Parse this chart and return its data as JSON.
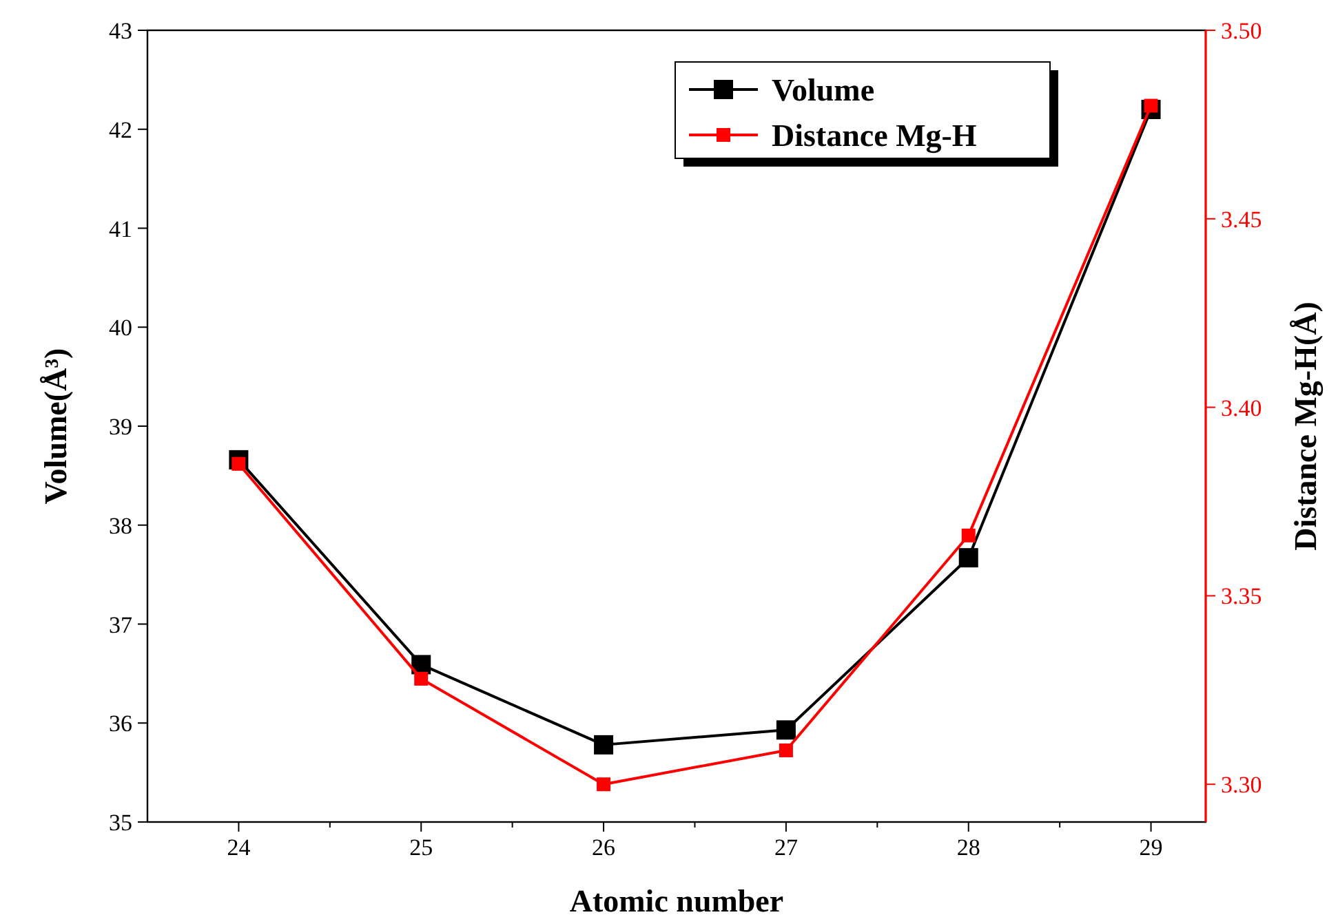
{
  "chart_data": {
    "type": "line",
    "xlabel": "Atomic number",
    "ylabel": "Volume(Å³)",
    "y2label": "Distance Mg-H(Å)",
    "x": [
      24,
      25,
      26,
      27,
      28,
      29
    ],
    "xlim": [
      23.5,
      29.3
    ],
    "xticks": [
      24,
      {
        "value": 24.5,
        "label": null
      },
      25,
      {
        "value": 25.5,
        "label": null
      },
      26,
      {
        "value": 26.5,
        "label": null
      },
      27,
      {
        "value": 27.5,
        "label": null
      },
      28,
      {
        "value": 28.5,
        "label": null
      },
      29
    ],
    "ylim": [
      35,
      43
    ],
    "yticks": [
      35,
      36,
      37,
      38,
      39,
      40,
      41,
      42,
      43
    ],
    "y2lim": [
      3.29,
      3.5
    ],
    "y2ticks": [
      {
        "value": 3.3,
        "label": "3.30"
      },
      3.35,
      {
        "value": 3.4,
        "label": "3.40"
      },
      3.45,
      {
        "value": 3.5,
        "label": "3.50"
      }
    ],
    "series": [
      {
        "name": "Volume",
        "color": "#000000",
        "values": [
          38.66,
          36.59,
          35.78,
          35.93,
          37.67,
          42.2
        ]
      },
      {
        "name": "Distance Mg-H",
        "color": "#ff0000",
        "axis": "y2",
        "values": [
          3.385,
          3.328,
          3.3,
          3.309,
          3.366,
          3.48
        ]
      }
    ],
    "marker": "square",
    "line_style": "solid",
    "legend": "top right",
    "grid": false
  }
}
